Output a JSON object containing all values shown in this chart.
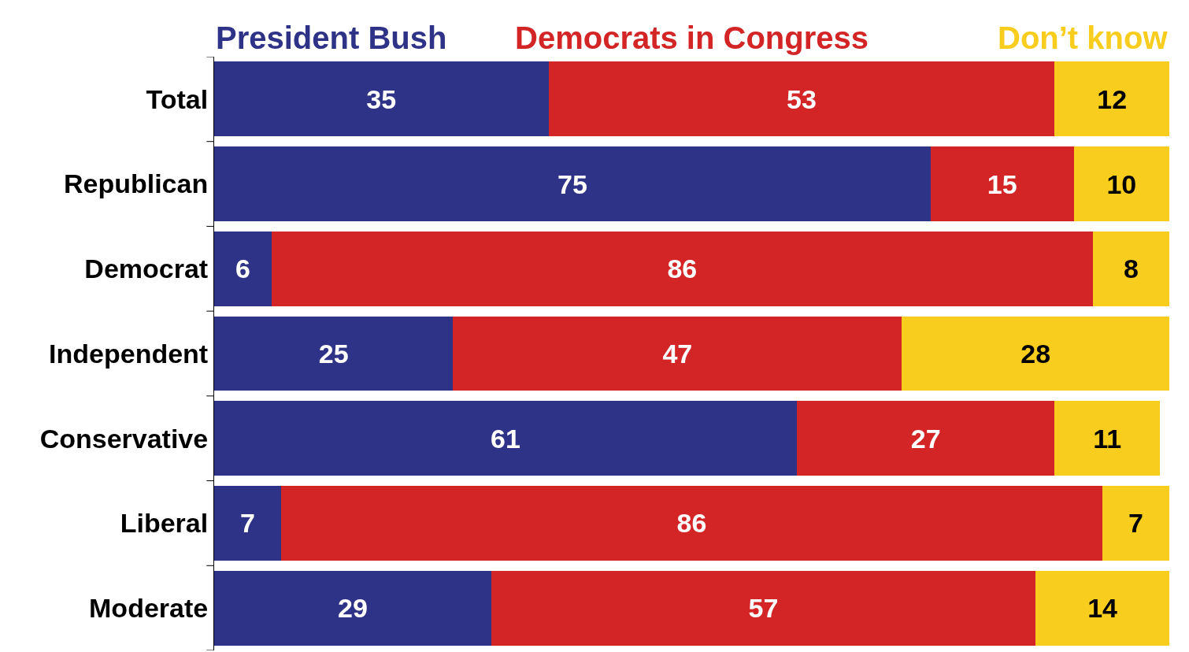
{
  "chart_data": {
    "type": "bar",
    "orientation": "horizontal",
    "stacked": true,
    "data_labels": true,
    "legend": "top",
    "tick_labels": "y",
    "xlim": [
      0,
      100
    ],
    "categories": [
      "Total",
      "Republican",
      "Democrat",
      "Independent",
      "Conservative",
      "Liberal",
      "Moderate"
    ],
    "series": [
      {
        "name": "President Bush",
        "color": "#2e3388",
        "values": [
          35,
          75,
          6,
          25,
          61,
          7,
          29
        ]
      },
      {
        "name": "Democrats in Congress",
        "color": "#d42526",
        "values": [
          53,
          15,
          86,
          47,
          27,
          86,
          57
        ]
      },
      {
        "name": "Don’t know",
        "color": "#f8cd1e",
        "values": [
          12,
          10,
          8,
          28,
          11,
          7,
          14
        ]
      }
    ]
  }
}
